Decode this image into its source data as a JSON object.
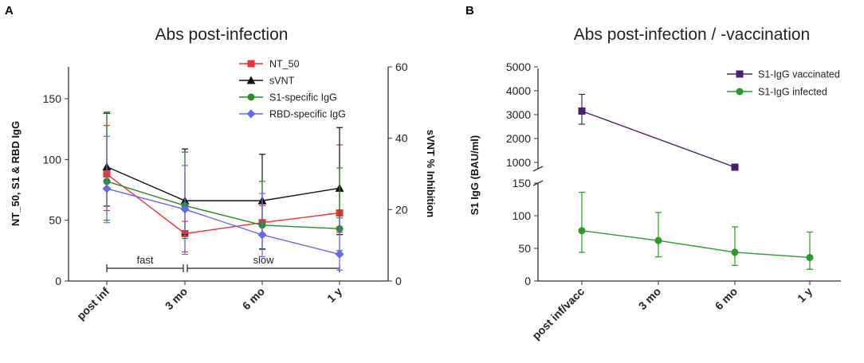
{
  "chart_data": [
    {
      "panel": "A",
      "type": "line",
      "title": "Abs post-infection",
      "categories": [
        "post inf",
        "3 mo",
        "6 mo",
        "1 y"
      ],
      "ylabel": "NT_50, S1 & RBD IgG",
      "ylabel_right": "sVNT  % Inhibition",
      "ylim": [
        0,
        175
      ],
      "yticks": [
        0,
        50,
        100,
        150
      ],
      "ylim_right": [
        0,
        60
      ],
      "yticks_right": [
        0,
        20,
        40,
        60
      ],
      "series": [
        {
          "name": "NT_50",
          "axis": "left",
          "color": "#ee3333",
          "marker": "square",
          "values": [
            88,
            39,
            48,
            56
          ],
          "err_low": [
            58,
            24,
            38,
            40
          ],
          "err_high": [
            128,
            49,
            62,
            112
          ]
        },
        {
          "name": "sVNT",
          "axis": "right",
          "color": "#111111",
          "marker": "triangle",
          "values": [
            32,
            22.5,
            22.5,
            26
          ],
          "err_low": [
            21,
            13,
            9,
            13
          ],
          "err_high": [
            47,
            37,
            35.5,
            43
          ]
        },
        {
          "name": "S1-specific IgG",
          "axis": "left",
          "color": "#2a8a2a",
          "marker": "circle",
          "values": [
            82,
            62,
            46,
            43
          ],
          "err_low": [
            50,
            35,
            26,
            25
          ],
          "err_high": [
            139,
            106,
            82,
            93
          ]
        },
        {
          "name": "RBD-specific IgG",
          "axis": "left",
          "color": "#6666ee",
          "marker": "diamond",
          "values": [
            76,
            59,
            38,
            22
          ],
          "err_low": [
            48,
            22,
            20,
            9
          ],
          "err_high": [
            119,
            95,
            72,
            52
          ]
        }
      ],
      "annotations": [
        {
          "text": "fast",
          "from": "post inf",
          "to": "3 mo"
        },
        {
          "text": "slow",
          "from": "3 mo",
          "to": "1 y"
        }
      ],
      "legend": "top-right"
    },
    {
      "panel": "B",
      "type": "line",
      "title": "Abs post-infection / -vaccination",
      "categories": [
        "post inf/vacc",
        "3 mo",
        "6 mo",
        "1 y"
      ],
      "ylabel": "S1 IgG  (BAU/ml)",
      "y_broken_axis": true,
      "ylim_upper": [
        800,
        5000
      ],
      "yticks_upper": [
        1000,
        2000,
        3000,
        4000,
        5000
      ],
      "ylim_lower": [
        0,
        150
      ],
      "yticks_lower": [
        0,
        50,
        100,
        150
      ],
      "series": [
        {
          "name": "S1-IgG vaccinated",
          "color": "#4b1f6f",
          "marker": "square",
          "values": [
            3150,
            null,
            800,
            null
          ],
          "err_low": [
            2600,
            null,
            700,
            null
          ],
          "err_high": [
            3850,
            null,
            900,
            null
          ]
        },
        {
          "name": "S1-IgG infected",
          "color": "#2a9a2a",
          "marker": "circle",
          "values": [
            77,
            62,
            44,
            36
          ],
          "err_low": [
            44,
            37,
            24,
            18
          ],
          "err_high": [
            136,
            105,
            83,
            75
          ]
        }
      ],
      "legend": "top-right"
    }
  ]
}
